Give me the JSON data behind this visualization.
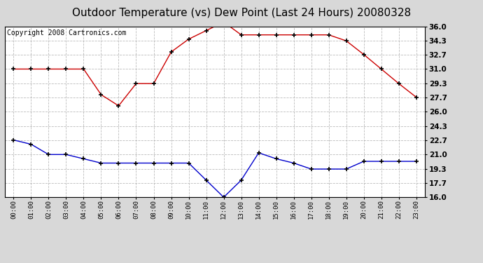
{
  "title": "Outdoor Temperature (vs) Dew Point (Last 24 Hours) 20080328",
  "copyright": "Copyright 2008 Cartronics.com",
  "x_labels": [
    "00:00",
    "01:00",
    "02:00",
    "03:00",
    "04:00",
    "05:00",
    "06:00",
    "07:00",
    "08:00",
    "09:00",
    "10:00",
    "11:00",
    "12:00",
    "13:00",
    "14:00",
    "15:00",
    "16:00",
    "17:00",
    "18:00",
    "19:00",
    "20:00",
    "21:00",
    "22:00",
    "23:00"
  ],
  "temp_red": [
    31.0,
    31.0,
    31.0,
    31.0,
    31.0,
    28.0,
    26.7,
    29.3,
    29.3,
    33.0,
    34.5,
    35.5,
    36.5,
    35.0,
    35.0,
    35.0,
    35.0,
    35.0,
    35.0,
    34.3,
    32.7,
    31.0,
    29.3,
    27.7
  ],
  "dew_blue": [
    22.7,
    22.2,
    21.0,
    21.0,
    20.5,
    20.0,
    20.0,
    20.0,
    20.0,
    20.0,
    20.0,
    18.0,
    16.0,
    18.0,
    21.2,
    20.5,
    20.0,
    19.3,
    19.3,
    19.3,
    20.2,
    20.2,
    20.2,
    20.2
  ],
  "ylim": [
    16.0,
    36.0
  ],
  "yticks": [
    16.0,
    17.7,
    19.3,
    21.0,
    22.7,
    24.3,
    26.0,
    27.7,
    29.3,
    31.0,
    32.7,
    34.3,
    36.0
  ],
  "red_color": "#cc0000",
  "blue_color": "#0000cc",
  "bg_color": "#d8d8d8",
  "plot_bg": "#ffffff",
  "grid_color": "#aaaaaa",
  "title_fontsize": 11,
  "copyright_fontsize": 7
}
